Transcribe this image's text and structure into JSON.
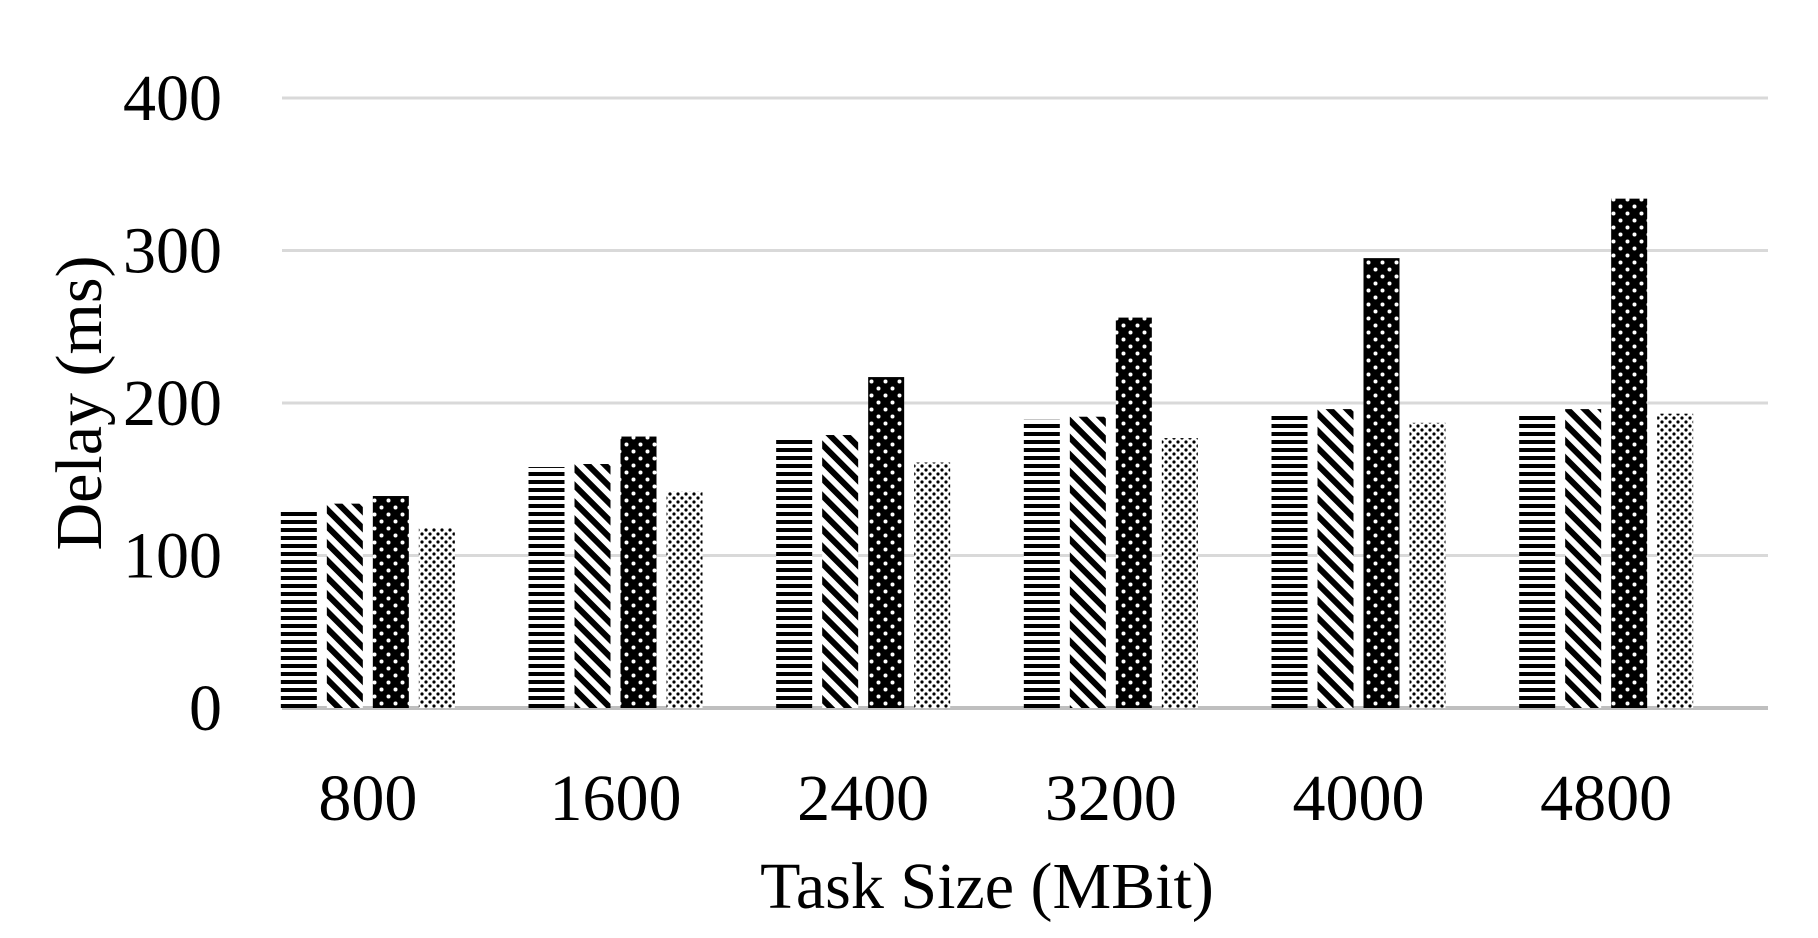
{
  "chart_data": {
    "type": "bar",
    "xlabel": "Task Size (MBit)",
    "ylabel": "Delay (ms)",
    "categories": [
      "800",
      "1600",
      "2400",
      "3200",
      "4000",
      "4800"
    ],
    "ylim": [
      0,
      400
    ],
    "yticks": [
      0,
      100,
      200,
      300,
      400
    ],
    "grid": true,
    "series": [
      {
        "pattern": "horizontal-stripes",
        "values": [
          130,
          158,
          177,
          189,
          194,
          194
        ]
      },
      {
        "pattern": "diagonal-stripes",
        "values": [
          134,
          160,
          179,
          191,
          196,
          196
        ]
      },
      {
        "pattern": "dense-dots",
        "values": [
          139,
          178,
          217,
          256,
          295,
          334
        ]
      },
      {
        "pattern": "sparse-dots",
        "values": [
          118,
          142,
          161,
          177,
          187,
          193
        ]
      }
    ],
    "colors": {
      "ink": "#000000",
      "grid": "#d9d9d9",
      "background": "#ffffff"
    }
  }
}
